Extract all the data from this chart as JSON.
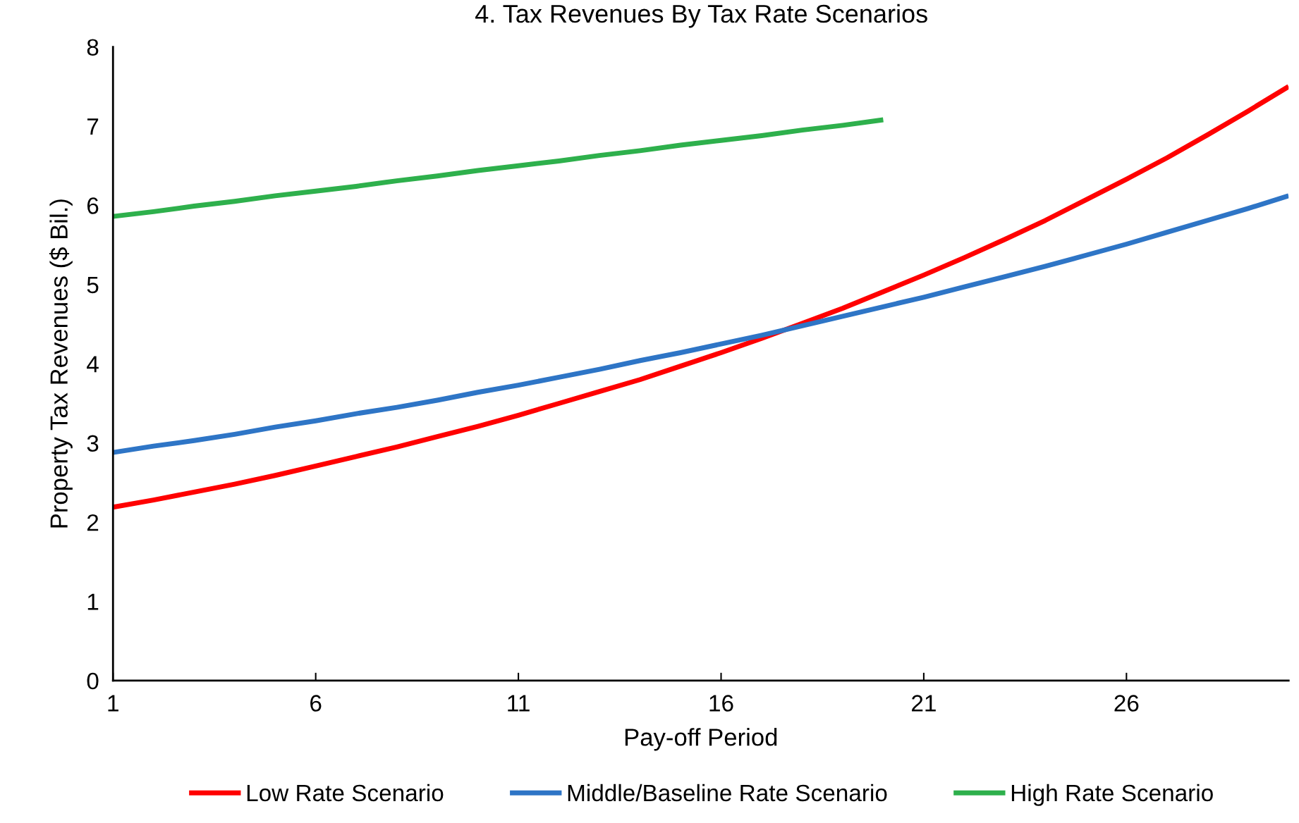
{
  "chart_data": {
    "type": "line",
    "title": "4. Tax Revenues By Tax Rate Scenarios",
    "xlabel": "Pay-off Period",
    "ylabel": "Property Tax Revenues ($ Bil.)",
    "x": [
      1,
      2,
      3,
      4,
      5,
      6,
      7,
      8,
      9,
      10,
      11,
      12,
      13,
      14,
      15,
      16,
      17,
      18,
      19,
      20,
      21,
      22,
      23,
      24,
      25,
      26,
      27,
      28,
      29,
      30
    ],
    "series": [
      {
        "name": "Low Rate Scenario",
        "color": "#ff0000",
        "values": [
          2.19,
          2.28,
          2.38,
          2.48,
          2.59,
          2.71,
          2.83,
          2.95,
          3.08,
          3.21,
          3.35,
          3.5,
          3.65,
          3.8,
          3.97,
          4.14,
          4.32,
          4.51,
          4.7,
          4.91,
          5.12,
          5.34,
          5.57,
          5.81,
          6.07,
          6.33,
          6.6,
          6.89,
          7.19,
          7.5
        ]
      },
      {
        "name": "Middle/Baseline Rate Scenario",
        "color": "#2e75c6",
        "values": [
          2.88,
          2.96,
          3.03,
          3.11,
          3.2,
          3.28,
          3.37,
          3.45,
          3.54,
          3.64,
          3.73,
          3.83,
          3.93,
          4.04,
          4.14,
          4.25,
          4.36,
          4.48,
          4.6,
          4.72,
          4.84,
          4.97,
          5.1,
          5.23,
          5.37,
          5.51,
          5.66,
          5.81,
          5.96,
          6.12
        ]
      },
      {
        "name": "High Rate Scenario",
        "color": "#2eb04c",
        "values": [
          5.86,
          5.92,
          5.99,
          6.05,
          6.12,
          6.18,
          6.24,
          6.31,
          6.37,
          6.44,
          6.5,
          6.56,
          6.63,
          6.69,
          6.76,
          6.82,
          6.88,
          6.95,
          7.01,
          7.08,
          null,
          null,
          null,
          null,
          null,
          null,
          null,
          null,
          null,
          null
        ]
      }
    ],
    "xlim": [
      1,
      30
    ],
    "xticks": [
      1,
      6,
      11,
      16,
      21,
      26
    ],
    "ylim": [
      0,
      8
    ],
    "yticks": [
      0,
      1,
      2,
      3,
      4,
      5,
      6,
      7,
      8
    ],
    "grid": false,
    "legend": "bottom",
    "marker": "none",
    "line_style": "solid"
  }
}
